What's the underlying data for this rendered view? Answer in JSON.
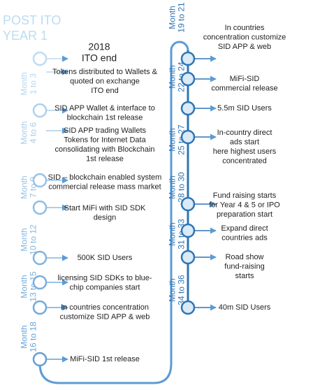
{
  "title": [
    "POST ITO",
    "YEAR 1"
  ],
  "left": {
    "periods": [
      [
        "Month",
        "1 to 3"
      ],
      [
        "Month",
        "4 to 6"
      ],
      [
        "Month",
        "7 to 9"
      ],
      [
        "Month",
        "10 to 12"
      ],
      [
        "Month",
        "13 to 15"
      ],
      [
        "Month",
        "16 to 18"
      ]
    ],
    "events": [
      [
        "2018",
        "ITO end"
      ],
      [
        "Tokens distributed to Wallets &",
        "quoted on exchange",
        "ITO end"
      ],
      [
        "SID APP Wallet & interface to",
        "blockchain 1st release"
      ],
      [
        "SID APP trading Wallets",
        "Tokens for Internet Data",
        "consolidating with Blockchain",
        "1st release"
      ],
      [
        "SID – blockchain enabled system",
        "commercial release mass market"
      ],
      [
        "Start MiFi with SID SDK",
        "design"
      ],
      [
        "500K SID Users"
      ],
      [
        "licensing SID SDKs to blue-",
        "chip companies start"
      ],
      [
        "In countries concentration",
        "customize SID APP & web"
      ],
      [
        "MiFi-SID 1st release"
      ]
    ]
  },
  "right": {
    "periods": [
      [
        "Month",
        "19 to 21"
      ],
      [
        "Month",
        "22 to 24"
      ],
      [
        "Month",
        "25 to 27"
      ],
      [
        "Month",
        "28 to 30"
      ],
      [
        "Month",
        "31 to 33"
      ],
      [
        "Month",
        "34 to 36"
      ]
    ],
    "events": [
      [
        "In countries",
        "concentration customize",
        "SID APP & web"
      ],
      [
        "MiFi-SID",
        "commercial release"
      ],
      [
        "5.5m SID Users"
      ],
      [
        "In-country direct",
        "ads start",
        "here highest users",
        "concentrated"
      ],
      [
        "Fund raising starts",
        "for Year 4 & 5 or IPO",
        "preparation start"
      ],
      [
        "Expand direct",
        "countries ads"
      ],
      [
        "Road show",
        "fund-raising",
        "starts"
      ],
      [
        "40m SID Users"
      ]
    ]
  }
}
